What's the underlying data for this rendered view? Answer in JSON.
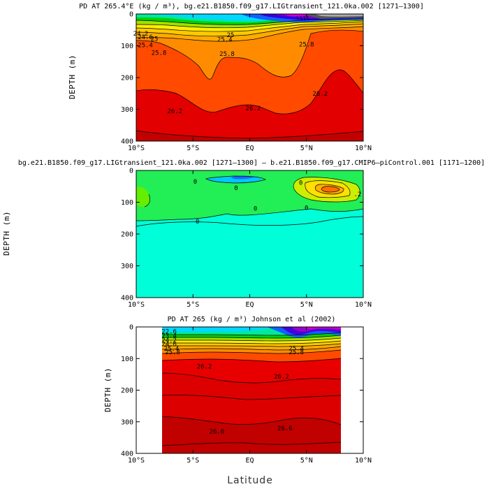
{
  "chart_data": [
    {
      "type": "contour",
      "title": "PD AT 265.4°E (kg / m³), bg.e21.B1850.f09_g17.LIGtransient_121.0ka.002 [1271–1300]",
      "ylabel": "DEPTH  (m)",
      "xlabel": "",
      "x_ticks": [
        "10°S",
        "5°S",
        "EQ",
        "5°N",
        "10°N"
      ],
      "y_ticks": [
        "0",
        "100",
        "200",
        "300",
        "400"
      ],
      "xlim": [
        -10,
        10
      ],
      "ylim": [
        400,
        0
      ],
      "contour_labels": [
        {
          "text": "24.2",
          "lat": -9.6,
          "depth": 62
        },
        {
          "text": "24.6",
          "lat": -9.2,
          "depth": 72
        },
        {
          "text": "25",
          "lat": -8.4,
          "depth": 78
        },
        {
          "text": "25.4",
          "lat": -9.2,
          "depth": 98
        },
        {
          "text": "25.8",
          "lat": -8.0,
          "depth": 122
        },
        {
          "text": "25.4",
          "lat": -2.2,
          "depth": 80
        },
        {
          "text": "25",
          "lat": -1.7,
          "depth": 66
        },
        {
          "text": "25.8",
          "lat": -2.0,
          "depth": 125
        },
        {
          "text": "25.8",
          "lat": 5.0,
          "depth": 96
        },
        {
          "text": "26.2",
          "lat": -6.6,
          "depth": 305
        },
        {
          "text": "26.2",
          "lat": 0.3,
          "depth": 297
        },
        {
          "text": "26.2",
          "lat": 6.2,
          "depth": 250
        }
      ]
    },
    {
      "type": "contour",
      "title": "bg.e21.B1850.f09_g17.LIGtransient_121.0ka.002 [1271–1300] – b.e21.B1850.f09_g17.CMIP6–piControl.001 [1171–1200]",
      "ylabel": "DEPTH  (m)",
      "xlabel": "",
      "x_ticks": [
        "10°S",
        "5°S",
        "EQ",
        "5°N",
        "10°N"
      ],
      "y_ticks": [
        "0",
        "100",
        "200",
        "300",
        "400"
      ],
      "xlim": [
        -10,
        10
      ],
      "ylim": [
        400,
        0
      ],
      "contour_labels": [
        {
          "text": "0",
          "lat": -1.2,
          "depth": 55
        },
        {
          "text": "0",
          "lat": -4.8,
          "depth": 35
        },
        {
          "text": "0",
          "lat": 0.5,
          "depth": 120
        },
        {
          "text": "0",
          "lat": 5.0,
          "depth": 118
        },
        {
          "text": "0",
          "lat": -4.6,
          "depth": 160
        },
        {
          "text": "0",
          "lat": 4.5,
          "depth": 38
        },
        {
          "text": ".2",
          "lat": 9.5,
          "depth": 75
        }
      ]
    },
    {
      "type": "contour",
      "title": "PD AT 265 (kg / m³) Johnson et al (2002)",
      "ylabel": "DEPTH  (m)",
      "xlabel": "Latitude",
      "x_ticks": [
        "10°S",
        "5°S",
        "EQ",
        "5°N",
        "10°N"
      ],
      "y_ticks": [
        "0",
        "100",
        "200",
        "300",
        "400"
      ],
      "xlim": [
        -10,
        10
      ],
      "ylim": [
        400,
        0
      ],
      "data_lat_range": [
        -8,
        8
      ],
      "contour_labels": [
        {
          "text": "22.6",
          "lat": -7.1,
          "depth": 14
        },
        {
          "text": "23.4",
          "lat": -7.1,
          "depth": 28
        },
        {
          "text": "24.2",
          "lat": -7.1,
          "depth": 42
        },
        {
          "text": "24.6",
          "lat": -7.1,
          "depth": 54
        },
        {
          "text": "25.4",
          "lat": -6.9,
          "depth": 68
        },
        {
          "text": "25.8",
          "lat": -6.8,
          "depth": 80
        },
        {
          "text": "26.2",
          "lat": -4.0,
          "depth": 125
        },
        {
          "text": "26.2",
          "lat": 2.8,
          "depth": 157
        },
        {
          "text": "25.8",
          "lat": 4.1,
          "depth": 80
        },
        {
          "text": "25.4",
          "lat": 4.1,
          "depth": 67
        },
        {
          "text": "26.6",
          "lat": -2.9,
          "depth": 330
        },
        {
          "text": "26.6",
          "lat": 3.1,
          "depth": 320
        }
      ]
    }
  ]
}
